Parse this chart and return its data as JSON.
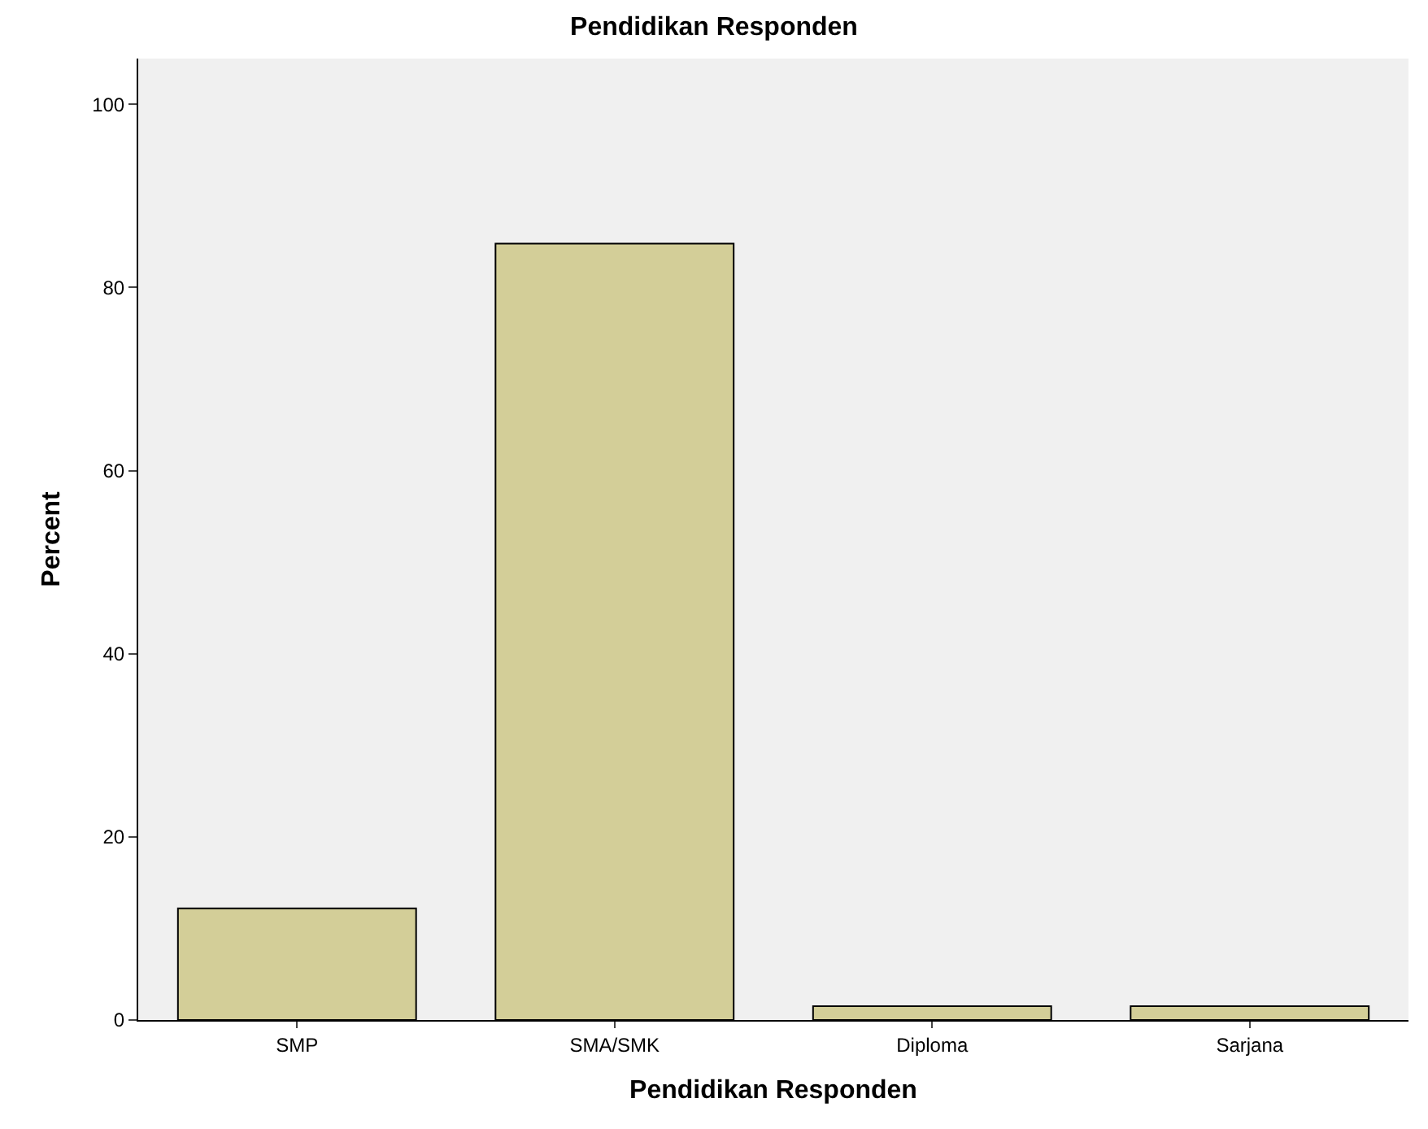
{
  "chart_data": {
    "type": "bar",
    "title": "Pendidikan Responden",
    "xlabel": "Pendidikan Responden",
    "ylabel": "Percent",
    "categories": [
      "SMP",
      "SMA/SMK",
      "Diploma",
      "Sarjana"
    ],
    "series": [
      {
        "color": "#d3ce98",
        "values": [
          12.2,
          84.8,
          1.5,
          1.5
        ]
      }
    ],
    "ylim": [
      0,
      105
    ],
    "yticks": [
      0,
      20,
      40,
      60,
      80,
      100
    ],
    "grid": false
  }
}
